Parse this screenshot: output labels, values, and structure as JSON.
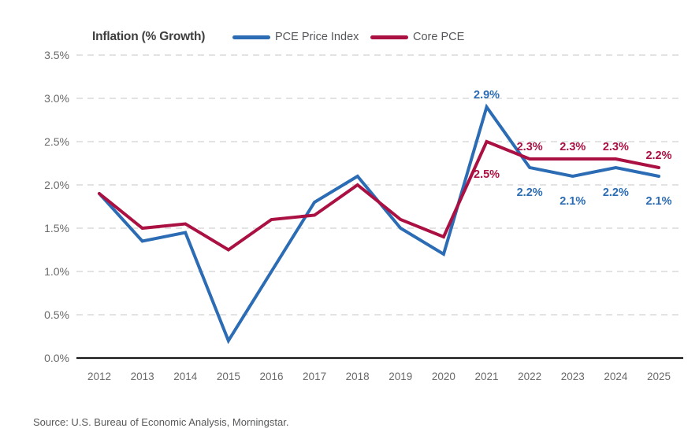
{
  "header": {
    "title": "Inflation (% Growth)",
    "legend": [
      {
        "label": "PCE Price Index",
        "color": "#2b6cb4"
      },
      {
        "label": "Core PCE",
        "color": "#aa1042"
      }
    ]
  },
  "chart_data": {
    "type": "line",
    "title": "Inflation (% Growth)",
    "x": [
      "2012",
      "2013",
      "2014",
      "2015",
      "2016",
      "2017",
      "2018",
      "2019",
      "2020",
      "2021",
      "2022",
      "2023",
      "2024",
      "2025"
    ],
    "ylim": [
      0,
      3.5
    ],
    "yticks": [
      {
        "value": 3.5,
        "label": "3.5%"
      },
      {
        "value": 3.0,
        "label": "3.0%"
      },
      {
        "value": 2.5,
        "label": "2.5%"
      },
      {
        "value": 2.0,
        "label": "2.0%"
      },
      {
        "value": 1.5,
        "label": "1.5%"
      },
      {
        "value": 1.0,
        "label": "1.0%"
      },
      {
        "value": 0.5,
        "label": "0.5%"
      },
      {
        "value": 0.0,
        "label": "0.0%"
      }
    ],
    "grid": "horizontal-dashed",
    "legend_position": "top",
    "gridline_color": "#d2d2d2",
    "axis_line_color": "#1a1a1a",
    "tick_label_color": "#6a6a6a",
    "series": [
      {
        "name": "PCE Price Index",
        "color": "#2b6cb4",
        "values": [
          1.9,
          1.35,
          1.45,
          0.2,
          1.0,
          1.8,
          2.1,
          1.5,
          1.2,
          2.9,
          2.2,
          2.1,
          2.2,
          2.1
        ],
        "point_labels": [
          {
            "x": "2021",
            "text": "2.9%",
            "position": "above"
          },
          {
            "x": "2022",
            "text": "2.2%",
            "position": "below"
          },
          {
            "x": "2023",
            "text": "2.1%",
            "position": "below"
          },
          {
            "x": "2024",
            "text": "2.2%",
            "position": "below"
          },
          {
            "x": "2025",
            "text": "2.1%",
            "position": "below"
          }
        ]
      },
      {
        "name": "Core PCE",
        "color": "#aa1042",
        "values": [
          1.9,
          1.5,
          1.55,
          1.25,
          1.6,
          1.65,
          2.0,
          1.6,
          1.4,
          2.5,
          2.3,
          2.3,
          2.3,
          2.2
        ],
        "point_labels": [
          {
            "x": "2021",
            "text": "2.5%",
            "position": "below-far"
          },
          {
            "x": "2022",
            "text": "2.3%",
            "position": "above"
          },
          {
            "x": "2023",
            "text": "2.3%",
            "position": "above"
          },
          {
            "x": "2024",
            "text": "2.3%",
            "position": "above"
          },
          {
            "x": "2025",
            "text": "2.2%",
            "position": "above"
          }
        ]
      }
    ]
  },
  "footer": {
    "source": "Source: U.S. Bureau of Economic Analysis, Morningstar."
  }
}
